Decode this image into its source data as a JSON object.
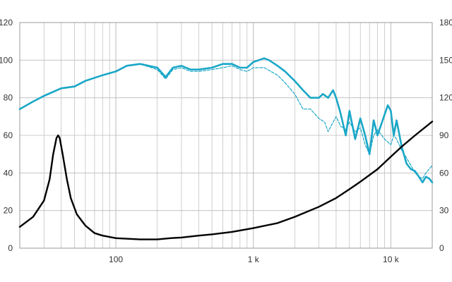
{
  "chart_data": {
    "type": "line",
    "title": "",
    "xlabel": "",
    "ylabel": "",
    "x_scale": "log",
    "xlim": [
      20,
      20000
    ],
    "ylim_left": [
      0,
      120
    ],
    "ylim_right": [
      0,
      180
    ],
    "grid": true,
    "x_tick_labels": [
      {
        "value": 100,
        "label": "100"
      },
      {
        "value": 1000,
        "label": "1 k"
      },
      {
        "value": 10000,
        "label": "10 k"
      }
    ],
    "y_left_ticks": [
      "0",
      "20",
      "40",
      "60",
      "80",
      "100",
      "120"
    ],
    "y_right_ticks": [
      "0",
      "30",
      "60",
      "90",
      "120",
      "150",
      "180"
    ],
    "colors": {
      "on_axis": "#1aa7c7",
      "off_axis": "#1aa7c7",
      "impedance": "#000000",
      "grid": "#bbbbbb"
    },
    "series": [
      {
        "id": "on_axis",
        "axis": "left",
        "style": "solid",
        "points": [
          [
            20,
            74
          ],
          [
            25,
            78
          ],
          [
            30,
            81
          ],
          [
            40,
            85
          ],
          [
            50,
            86
          ],
          [
            60,
            89
          ],
          [
            80,
            92
          ],
          [
            100,
            94
          ],
          [
            120,
            97
          ],
          [
            150,
            98
          ],
          [
            200,
            96
          ],
          [
            230,
            91
          ],
          [
            260,
            96
          ],
          [
            300,
            97
          ],
          [
            350,
            95
          ],
          [
            400,
            95
          ],
          [
            500,
            96
          ],
          [
            600,
            98
          ],
          [
            700,
            98
          ],
          [
            800,
            96
          ],
          [
            900,
            96
          ],
          [
            1000,
            99
          ],
          [
            1200,
            101
          ],
          [
            1300,
            100
          ],
          [
            1500,
            97
          ],
          [
            1700,
            94
          ],
          [
            2000,
            89
          ],
          [
            2300,
            84
          ],
          [
            2600,
            80
          ],
          [
            3000,
            80
          ],
          [
            3200,
            82
          ],
          [
            3500,
            80
          ],
          [
            3800,
            84
          ],
          [
            4000,
            80
          ],
          [
            4300,
            72
          ],
          [
            4700,
            60
          ],
          [
            5000,
            73
          ],
          [
            5500,
            58
          ],
          [
            6000,
            69
          ],
          [
            6500,
            60
          ],
          [
            7000,
            50
          ],
          [
            7500,
            68
          ],
          [
            8000,
            60
          ],
          [
            9000,
            71
          ],
          [
            9500,
            76
          ],
          [
            10000,
            73
          ],
          [
            10500,
            60
          ],
          [
            11000,
            68
          ],
          [
            12000,
            54
          ],
          [
            13000,
            45
          ],
          [
            14000,
            42
          ],
          [
            15000,
            41
          ],
          [
            16000,
            38
          ],
          [
            17000,
            35
          ],
          [
            18000,
            38
          ],
          [
            19000,
            37
          ],
          [
            20000,
            35
          ]
        ]
      },
      {
        "id": "off_axis",
        "axis": "left",
        "style": "dashed",
        "points": [
          [
            20,
            74
          ],
          [
            25,
            78
          ],
          [
            30,
            81
          ],
          [
            40,
            85
          ],
          [
            50,
            86
          ],
          [
            60,
            89
          ],
          [
            80,
            92
          ],
          [
            100,
            94
          ],
          [
            120,
            97
          ],
          [
            150,
            98
          ],
          [
            200,
            95
          ],
          [
            230,
            90
          ],
          [
            260,
            95
          ],
          [
            300,
            96
          ],
          [
            350,
            94
          ],
          [
            400,
            94
          ],
          [
            500,
            95
          ],
          [
            600,
            96
          ],
          [
            700,
            97
          ],
          [
            800,
            95
          ],
          [
            900,
            94
          ],
          [
            1000,
            96
          ],
          [
            1200,
            96
          ],
          [
            1500,
            92
          ],
          [
            1700,
            88
          ],
          [
            2000,
            82
          ],
          [
            2300,
            74
          ],
          [
            2600,
            74
          ],
          [
            3000,
            69
          ],
          [
            3300,
            67
          ],
          [
            3500,
            62
          ],
          [
            4000,
            70
          ],
          [
            4300,
            65
          ],
          [
            4700,
            63
          ],
          [
            5000,
            67
          ],
          [
            5500,
            62
          ],
          [
            6000,
            64
          ],
          [
            6500,
            55
          ],
          [
            7000,
            50
          ],
          [
            7500,
            60
          ],
          [
            8000,
            63
          ],
          [
            9000,
            58
          ],
          [
            10000,
            55
          ],
          [
            10500,
            60
          ],
          [
            11000,
            58
          ],
          [
            12000,
            52
          ],
          [
            13000,
            48
          ],
          [
            14000,
            44
          ],
          [
            15000,
            40
          ],
          [
            16000,
            38
          ],
          [
            17000,
            37
          ],
          [
            18000,
            40
          ],
          [
            19000,
            42
          ],
          [
            20000,
            44
          ]
        ]
      },
      {
        "id": "impedance",
        "axis": "right",
        "style": "solid",
        "points": [
          [
            20,
            17
          ],
          [
            25,
            25
          ],
          [
            30,
            38
          ],
          [
            33,
            55
          ],
          [
            35,
            75
          ],
          [
            37,
            88
          ],
          [
            38,
            90
          ],
          [
            39,
            88
          ],
          [
            41,
            75
          ],
          [
            44,
            55
          ],
          [
            47,
            40
          ],
          [
            52,
            27
          ],
          [
            60,
            18
          ],
          [
            70,
            12
          ],
          [
            80,
            10
          ],
          [
            100,
            8
          ],
          [
            150,
            7
          ],
          [
            200,
            7
          ],
          [
            250,
            8
          ],
          [
            300,
            8.5
          ],
          [
            400,
            10
          ],
          [
            500,
            11
          ],
          [
            700,
            13
          ],
          [
            1000,
            16
          ],
          [
            1500,
            20
          ],
          [
            2000,
            25
          ],
          [
            3000,
            33
          ],
          [
            4000,
            40
          ],
          [
            5000,
            47
          ],
          [
            6000,
            53
          ],
          [
            8000,
            63
          ],
          [
            10000,
            73
          ],
          [
            12000,
            81
          ],
          [
            15000,
            90
          ],
          [
            20000,
            101
          ]
        ]
      }
    ]
  }
}
